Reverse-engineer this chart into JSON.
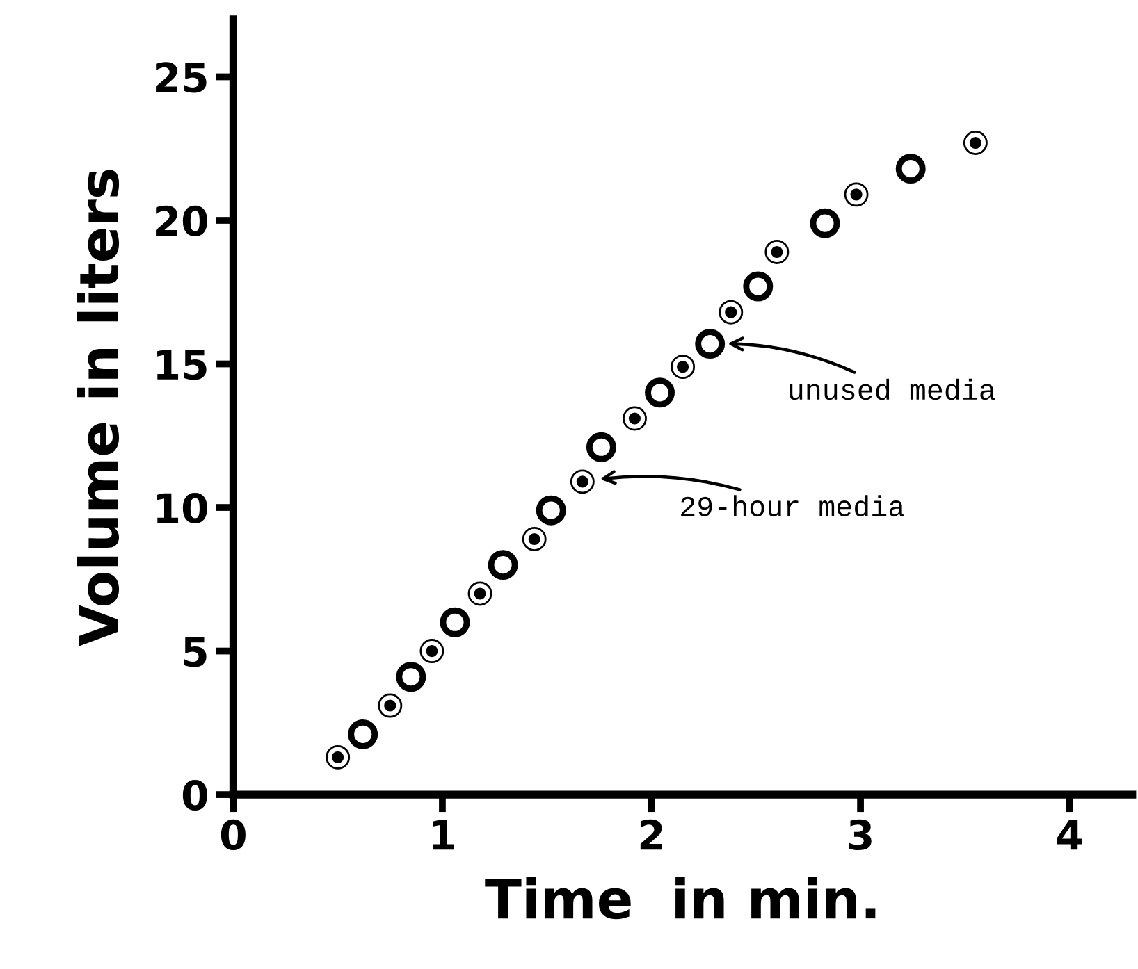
{
  "chart_data": {
    "type": "scatter",
    "xlabel": "Time  in min.",
    "ylabel": "Volume in liters",
    "xlim": [
      0,
      4.3
    ],
    "ylim": [
      0,
      27
    ],
    "xticks": [
      0,
      1,
      2,
      3,
      4
    ],
    "yticks": [
      0,
      5,
      10,
      15,
      20,
      25
    ],
    "grid": false,
    "marker": "circle",
    "legend": "right",
    "series": [
      {
        "name": "29-hour media",
        "color": "#000000",
        "x": [
          0.5,
          0.75,
          0.95,
          1.18,
          1.44,
          1.67,
          1.92,
          2.15,
          2.38,
          2.6,
          2.98,
          3.55
        ],
        "values": [
          1.3,
          3.1,
          5.0,
          7.0,
          8.9,
          10.9,
          13.1,
          14.9,
          16.8,
          18.9,
          20.9,
          22.7
        ]
      },
      {
        "name": "unused media",
        "color": "#000000",
        "x": [
          0.62,
          0.85,
          1.06,
          1.29,
          1.52,
          1.76,
          2.04,
          2.28,
          2.51,
          2.83,
          3.24
        ],
        "values": [
          2.1,
          4.1,
          6.0,
          8.0,
          9.9,
          12.1,
          14.0,
          15.7,
          17.7,
          19.9,
          21.8
        ]
      }
    ]
  }
}
